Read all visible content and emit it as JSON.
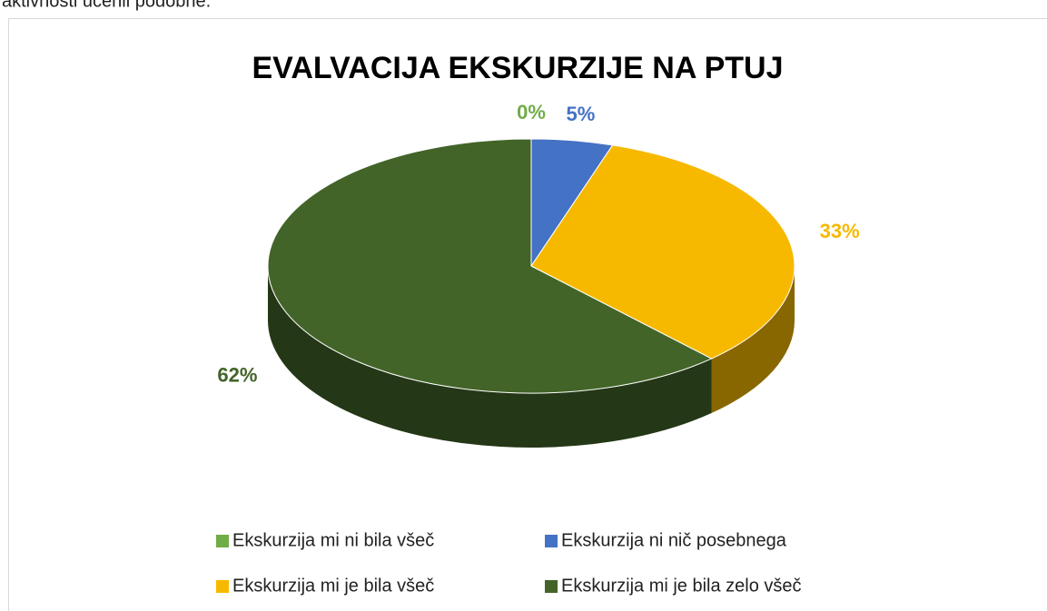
{
  "header_text": "aktivnosti učenli podobne.",
  "chart_data": {
    "type": "pie",
    "title": "EVALVACIJA EKSKURZIJE NA PTUJ",
    "categories": [
      "Ekskurzija mi ni bila všeč",
      "Ekskurzija ni nič posebnega",
      "Ekskurzija mi je bila všeč",
      "Ekskurzija mi je bila zelo všeč"
    ],
    "values": [
      0,
      5,
      33,
      62
    ],
    "value_labels": [
      "0%",
      "5%",
      "33%",
      "62%"
    ],
    "colors": [
      "#70ad47",
      "#4472c4",
      "#f7b900",
      "#426428"
    ],
    "legend": "bottom"
  }
}
